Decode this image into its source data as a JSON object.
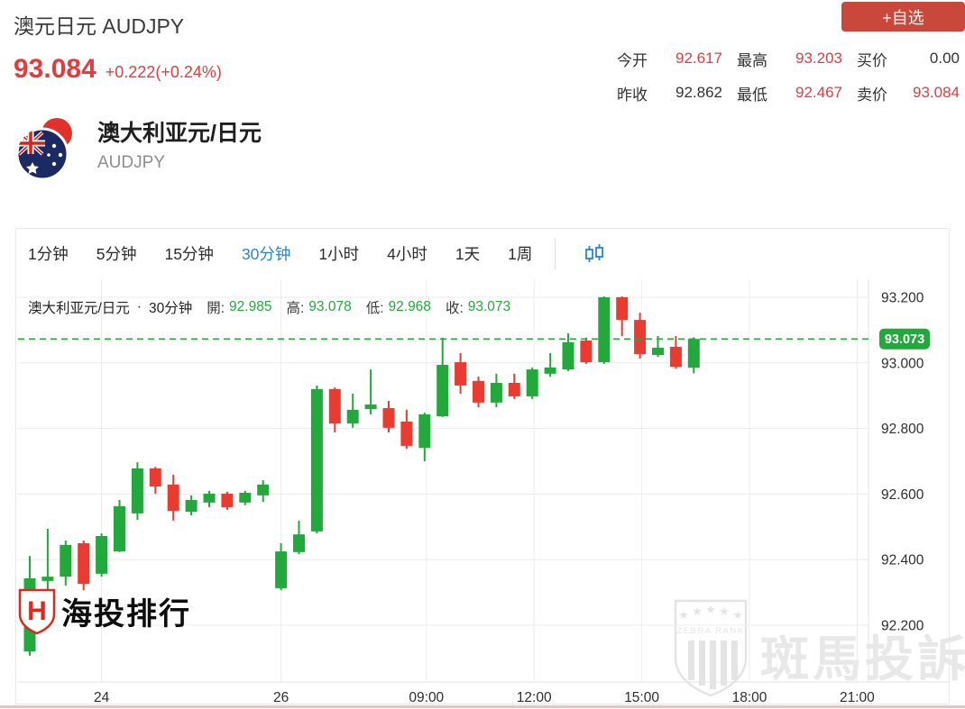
{
  "header": {
    "title": "澳元日元 AUDJPY",
    "fav_button": "+自选",
    "price": "93.084",
    "change": "+0.222(+0.24%)",
    "stats": {
      "open": {
        "label": "今开",
        "value": "92.617"
      },
      "prev_close": {
        "label": "昨收",
        "value": "92.862"
      },
      "high": {
        "label": "最高",
        "value": "93.203"
      },
      "low": {
        "label": "最低",
        "value": "92.467"
      },
      "bid": {
        "label": "买价",
        "value": "0.00"
      },
      "ask": {
        "label": "卖价",
        "value": "93.084"
      }
    }
  },
  "instrument": {
    "name": "澳大利亚元/日元",
    "code": "AUDJPY"
  },
  "tabs": {
    "items": [
      {
        "label": "1分钟"
      },
      {
        "label": "5分钟"
      },
      {
        "label": "15分钟"
      },
      {
        "label": "30分钟",
        "active": true
      },
      {
        "label": "1小时"
      },
      {
        "label": "4小时"
      },
      {
        "label": "1天"
      },
      {
        "label": "1周"
      }
    ],
    "active": "30分钟",
    "chart_type_icon": "candlestick-icon"
  },
  "legend": {
    "symbol": "澳大利亚元/日元",
    "dot": "·",
    "interval": "30分钟",
    "open_label": "開:",
    "open": "92.985",
    "high_label": "高:",
    "high": "93.078",
    "low_label": "低:",
    "low": "92.968",
    "close_label": "收:",
    "close": "93.073"
  },
  "watermarks": {
    "site": "海投排行",
    "site_shield_letter": "H",
    "zebra_text": "斑馬投訴",
    "zebra_rank": "ZEBRA RANK"
  },
  "chart_data": {
    "type": "candlestick",
    "title": "澳大利亚元/日元 30分钟 K线",
    "interval": "30分钟",
    "y_ticks": [
      "93.200",
      "93.000",
      "92.800",
      "92.600",
      "92.400",
      "92.200"
    ],
    "ylim": [
      92.05,
      93.26
    ],
    "grid": true,
    "x_ticks": [
      {
        "label": "24",
        "pos": 4
      },
      {
        "label": "26",
        "pos": 14
      },
      {
        "label": "09:00",
        "pos": 22.1
      },
      {
        "label": "12:00",
        "pos": 28.1
      },
      {
        "label": "15:00",
        "pos": 34.1
      },
      {
        "label": "18:00",
        "pos": 40.1
      },
      {
        "label": "21:00",
        "pos": 46.1
      }
    ],
    "last_price": "93.073",
    "last_price_value": 93.073,
    "price_line_style": "dashed",
    "candles": [
      {
        "o": 92.12,
        "h": 92.411,
        "l": 92.107,
        "c": 92.343
      },
      {
        "o": 92.335,
        "h": 92.494,
        "l": 92.192,
        "c": 92.348
      },
      {
        "o": 92.348,
        "h": 92.458,
        "l": 92.321,
        "c": 92.445
      },
      {
        "o": 92.45,
        "h": 92.458,
        "l": 92.307,
        "c": 92.326
      },
      {
        "o": 92.357,
        "h": 92.48,
        "l": 92.348,
        "c": 92.472
      },
      {
        "o": 92.425,
        "h": 92.582,
        "l": 92.423,
        "c": 92.563
      },
      {
        "o": 92.541,
        "h": 92.697,
        "l": 92.521,
        "c": 92.678
      },
      {
        "o": 92.678,
        "h": 92.683,
        "l": 92.601,
        "c": 92.623
      },
      {
        "o": 92.629,
        "h": 92.659,
        "l": 92.519,
        "c": 92.549
      },
      {
        "o": 92.546,
        "h": 92.596,
        "l": 92.535,
        "c": 92.582
      },
      {
        "o": 92.574,
        "h": 92.61,
        "l": 92.56,
        "c": 92.601
      },
      {
        "o": 92.601,
        "h": 92.607,
        "l": 92.552,
        "c": 92.56
      },
      {
        "o": 92.574,
        "h": 92.61,
        "l": 92.566,
        "c": 92.604
      },
      {
        "o": 92.596,
        "h": 92.642,
        "l": 92.576,
        "c": 92.629
      },
      {
        "o": 92.313,
        "h": 92.45,
        "l": 92.307,
        "c": 92.425
      },
      {
        "o": 92.423,
        "h": 92.519,
        "l": 92.417,
        "c": 92.477
      },
      {
        "o": 92.486,
        "h": 92.931,
        "l": 92.48,
        "c": 92.92
      },
      {
        "o": 92.92,
        "h": 92.925,
        "l": 92.788,
        "c": 92.815
      },
      {
        "o": 92.815,
        "h": 92.906,
        "l": 92.802,
        "c": 92.857
      },
      {
        "o": 92.859,
        "h": 92.98,
        "l": 92.843,
        "c": 92.873
      },
      {
        "o": 92.862,
        "h": 92.884,
        "l": 92.788,
        "c": 92.802
      },
      {
        "o": 92.821,
        "h": 92.857,
        "l": 92.738,
        "c": 92.747
      },
      {
        "o": 92.741,
        "h": 92.848,
        "l": 92.7,
        "c": 92.843
      },
      {
        "o": 92.837,
        "h": 93.077,
        "l": 92.835,
        "c": 92.994
      },
      {
        "o": 93.002,
        "h": 93.03,
        "l": 92.906,
        "c": 92.931
      },
      {
        "o": 92.945,
        "h": 92.958,
        "l": 92.865,
        "c": 92.879
      },
      {
        "o": 92.879,
        "h": 92.967,
        "l": 92.865,
        "c": 92.939
      },
      {
        "o": 92.939,
        "h": 92.967,
        "l": 92.89,
        "c": 92.898
      },
      {
        "o": 92.898,
        "h": 92.986,
        "l": 92.89,
        "c": 92.98
      },
      {
        "o": 92.967,
        "h": 93.03,
        "l": 92.958,
        "c": 92.986
      },
      {
        "o": 92.98,
        "h": 93.09,
        "l": 92.975,
        "c": 93.063
      },
      {
        "o": 93.068,
        "h": 93.077,
        "l": 92.997,
        "c": 93.002
      },
      {
        "o": 93.002,
        "h": 93.203,
        "l": 92.997,
        "c": 93.2
      },
      {
        "o": 93.2,
        "h": 93.203,
        "l": 93.082,
        "c": 93.131
      },
      {
        "o": 93.131,
        "h": 93.153,
        "l": 93.013,
        "c": 93.027
      },
      {
        "o": 93.024,
        "h": 93.082,
        "l": 93.018,
        "c": 93.046
      },
      {
        "o": 93.049,
        "h": 93.082,
        "l": 92.982,
        "c": 92.988
      },
      {
        "o": 92.985,
        "h": 93.078,
        "l": 92.968,
        "c": 93.073
      }
    ]
  },
  "colors": {
    "up": "#21a93c",
    "down": "#e93b30",
    "accent_red": "#e23c3c",
    "fav_bg": "#c9483b",
    "tab_active": "#2586d7",
    "grid": "#ececec",
    "axis_line": "#e3e3e3",
    "axis_text": "#2e2e2e",
    "watermark_gray": "#e8e8e8"
  }
}
